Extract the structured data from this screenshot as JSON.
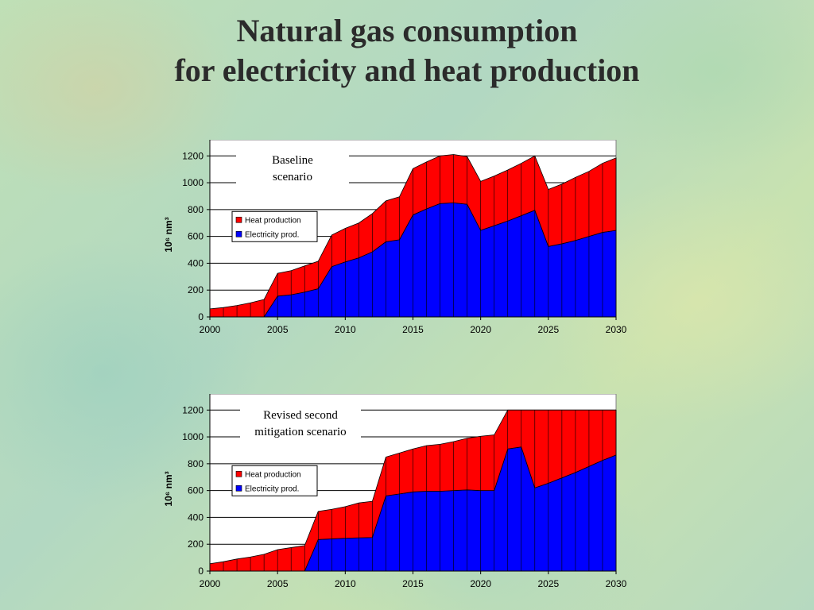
{
  "title": {
    "line1": "Natural gas consumption",
    "line2": "for electricity and heat production"
  },
  "colors": {
    "heat": "#ff0000",
    "electricity": "#0000ff",
    "plot_background": "#ffffff",
    "gridlines": "#000000"
  },
  "chart_data": [
    {
      "type": "area",
      "stacked": true,
      "annotation": [
        "Baseline",
        "scenario"
      ],
      "ylabel": "10⁶ nm³",
      "xlabel": "",
      "x": [
        2000,
        2001,
        2002,
        2003,
        2004,
        2005,
        2006,
        2007,
        2008,
        2009,
        2010,
        2011,
        2012,
        2013,
        2014,
        2015,
        2016,
        2017,
        2018,
        2019,
        2020,
        2021,
        2022,
        2023,
        2024,
        2025,
        2026,
        2027,
        2028,
        2029,
        2030
      ],
      "xticks": [
        2000,
        2005,
        2010,
        2015,
        2020,
        2025,
        2030
      ],
      "ylim": [
        0,
        1200
      ],
      "yticks": [
        0,
        200,
        400,
        600,
        800,
        1000,
        1200
      ],
      "grid": true,
      "legend_position": "upper-left",
      "series": [
        {
          "name": "Electricity prod.",
          "color": "#0000ff",
          "values": [
            0,
            0,
            0,
            0,
            0,
            155,
            165,
            185,
            210,
            375,
            410,
            440,
            485,
            560,
            575,
            760,
            805,
            845,
            850,
            840,
            645,
            680,
            715,
            755,
            795,
            525,
            545,
            570,
            600,
            630,
            645
          ]
        },
        {
          "name": "Heat production",
          "color": "#ff0000",
          "values": [
            60,
            70,
            85,
            105,
            130,
            170,
            180,
            195,
            205,
            235,
            250,
            260,
            285,
            305,
            320,
            345,
            350,
            355,
            360,
            355,
            365,
            370,
            380,
            390,
            405,
            425,
            445,
            470,
            485,
            515,
            540
          ]
        }
      ]
    },
    {
      "type": "area",
      "stacked": true,
      "annotation": [
        "Revised second",
        "mitigation scenario"
      ],
      "ylabel": "10⁶ nm³",
      "xlabel": "",
      "x": [
        2000,
        2001,
        2002,
        2003,
        2004,
        2005,
        2006,
        2007,
        2008,
        2009,
        2010,
        2011,
        2012,
        2013,
        2014,
        2015,
        2016,
        2017,
        2018,
        2019,
        2020,
        2021,
        2022,
        2023,
        2024,
        2025,
        2026,
        2027,
        2028,
        2029,
        2030
      ],
      "xticks": [
        2000,
        2005,
        2010,
        2015,
        2020,
        2025,
        2030
      ],
      "ylim": [
        0,
        1200
      ],
      "yticks": [
        0,
        200,
        400,
        600,
        800,
        1000,
        1200
      ],
      "grid": true,
      "legend_position": "upper-left",
      "series": [
        {
          "name": "Electricity prod.",
          "color": "#0000ff",
          "values": [
            0,
            0,
            0,
            0,
            0,
            0,
            0,
            0,
            235,
            240,
            245,
            248,
            250,
            560,
            575,
            590,
            595,
            595,
            600,
            605,
            600,
            600,
            910,
            925,
            620,
            655,
            695,
            735,
            780,
            825,
            865
          ]
        },
        {
          "name": "Heat production",
          "color": "#ff0000",
          "values": [
            55,
            70,
            90,
            105,
            125,
            160,
            175,
            190,
            210,
            220,
            235,
            260,
            270,
            290,
            305,
            320,
            340,
            350,
            365,
            385,
            405,
            415,
            290,
            275,
            580,
            545,
            505,
            465,
            420,
            375,
            335
          ]
        }
      ]
    }
  ]
}
